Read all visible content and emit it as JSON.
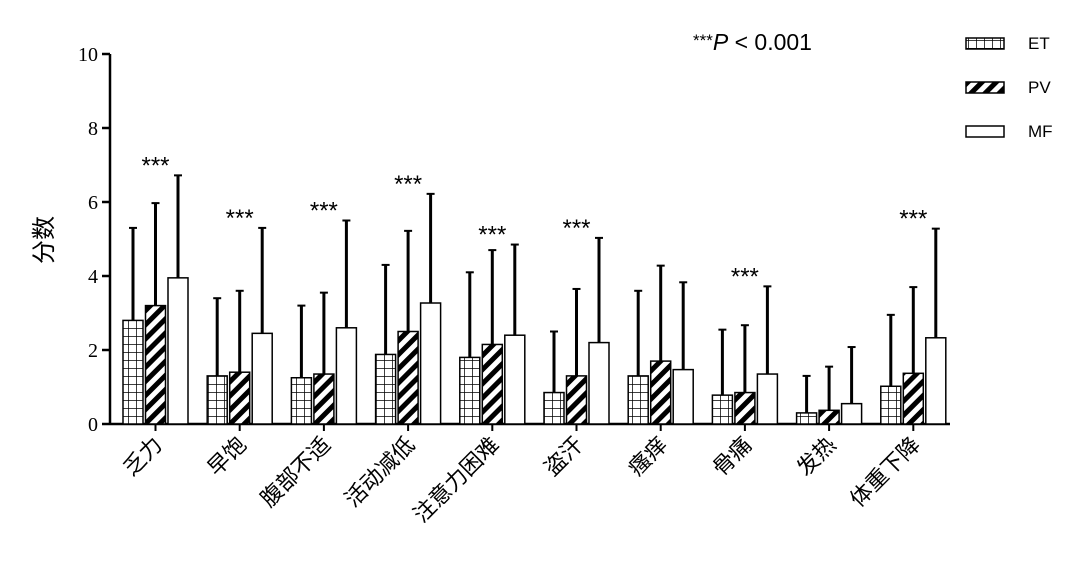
{
  "chart_data": {
    "type": "bar",
    "title": "",
    "xlabel": "",
    "ylabel": "分数",
    "ylim": [
      0,
      10
    ],
    "yticks": [
      "0",
      "2",
      "4",
      "6",
      "8",
      "10"
    ],
    "grid": false,
    "legend_position": "top-right",
    "categories": [
      "乏力",
      "早饱",
      "腹部不适",
      "活动减低",
      "注意力困难",
      "盗汗",
      "瘙痒",
      "骨痛",
      "发热",
      "体重下降"
    ],
    "series": [
      {
        "name": "ET",
        "pattern": "grid",
        "values": [
          2.8,
          1.3,
          1.25,
          1.88,
          1.8,
          0.85,
          1.3,
          0.78,
          0.3,
          1.02
        ],
        "error_upper": [
          5.3,
          3.4,
          3.2,
          4.3,
          4.1,
          2.5,
          3.6,
          2.55,
          1.3,
          2.95
        ]
      },
      {
        "name": "PV",
        "pattern": "diagonal",
        "values": [
          3.2,
          1.4,
          1.35,
          2.5,
          2.15,
          1.3,
          1.7,
          0.85,
          0.37,
          1.37
        ],
        "error_upper": [
          5.97,
          3.6,
          3.55,
          5.22,
          4.7,
          3.65,
          4.28,
          2.67,
          1.55,
          3.7
        ]
      },
      {
        "name": "MF",
        "pattern": "plain",
        "values": [
          3.95,
          2.45,
          2.6,
          3.27,
          2.4,
          2.2,
          1.47,
          1.35,
          0.55,
          2.33
        ],
        "error_upper": [
          6.72,
          5.3,
          5.5,
          6.22,
          4.85,
          5.03,
          3.83,
          3.72,
          2.08,
          5.28
        ]
      }
    ],
    "significance_marker": "***",
    "significant": [
      true,
      true,
      true,
      true,
      true,
      true,
      false,
      true,
      false,
      true
    ],
    "annotation": {
      "stars": "***",
      "p": "P",
      "rest": " < 0.001"
    }
  }
}
